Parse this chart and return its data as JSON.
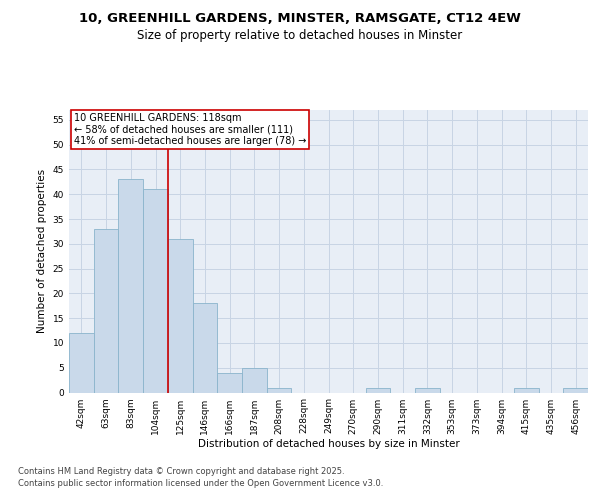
{
  "title_line1": "10, GREENHILL GARDENS, MINSTER, RAMSGATE, CT12 4EW",
  "title_line2": "Size of property relative to detached houses in Minster",
  "xlabel": "Distribution of detached houses by size in Minster",
  "ylabel": "Number of detached properties",
  "categories": [
    "42sqm",
    "63sqm",
    "83sqm",
    "104sqm",
    "125sqm",
    "146sqm",
    "166sqm",
    "187sqm",
    "208sqm",
    "228sqm",
    "249sqm",
    "270sqm",
    "290sqm",
    "311sqm",
    "332sqm",
    "353sqm",
    "373sqm",
    "394sqm",
    "415sqm",
    "435sqm",
    "456sqm"
  ],
  "values": [
    12,
    33,
    43,
    41,
    31,
    18,
    4,
    5,
    1,
    0,
    0,
    0,
    1,
    0,
    1,
    0,
    0,
    0,
    1,
    0,
    1
  ],
  "bar_facecolor": "#c9d9ea",
  "bar_edgecolor": "#8ab4cc",
  "property_line_color": "#cc0000",
  "annotation_text": "10 GREENHILL GARDENS: 118sqm\n← 58% of detached houses are smaller (111)\n41% of semi-detached houses are larger (78) →",
  "annotation_box_edgecolor": "#cc0000",
  "annotation_box_facecolor": "#ffffff",
  "ylim": [
    0,
    57
  ],
  "yticks": [
    0,
    5,
    10,
    15,
    20,
    25,
    30,
    35,
    40,
    45,
    50,
    55
  ],
  "grid_color": "#c8d4e4",
  "background_color": "#e8eef6",
  "footer_text": "Contains HM Land Registry data © Crown copyright and database right 2025.\nContains public sector information licensed under the Open Government Licence v3.0.",
  "title_fontsize": 9.5,
  "subtitle_fontsize": 8.5,
  "axis_label_fontsize": 7.5,
  "tick_fontsize": 6.5,
  "annotation_fontsize": 7,
  "footer_fontsize": 6
}
